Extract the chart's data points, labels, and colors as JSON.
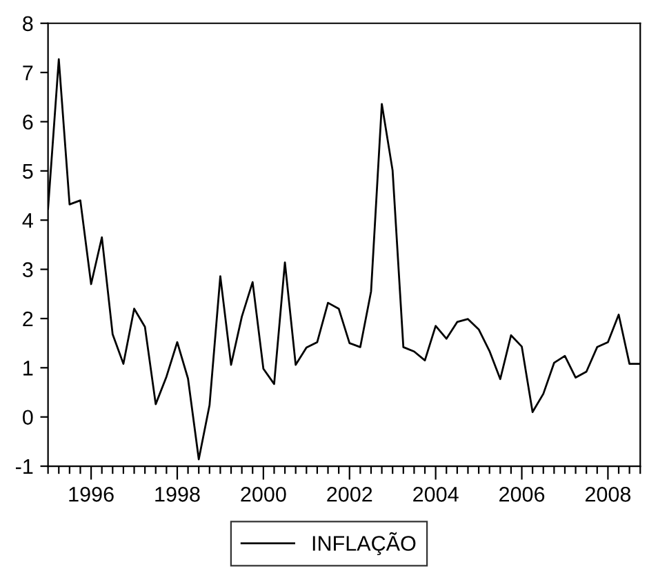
{
  "chart_data": {
    "type": "line",
    "legend": "bottom",
    "ylim": [
      -1,
      8
    ],
    "yticks": [
      -1,
      0,
      1,
      2,
      3,
      4,
      5,
      6,
      7,
      8
    ],
    "xlim": [
      1995,
      2008.75
    ],
    "xticks": [
      {
        "value": 1995,
        "label": null
      },
      {
        "value": 1995.25,
        "label": null
      },
      {
        "value": 1995.5,
        "label": null
      },
      {
        "value": 1995.75,
        "label": null
      },
      1996,
      {
        "value": 1996.25,
        "label": null
      },
      {
        "value": 1996.5,
        "label": null
      },
      {
        "value": 1996.75,
        "label": null
      },
      {
        "value": 1997,
        "label": null
      },
      {
        "value": 1997.25,
        "label": null
      },
      {
        "value": 1997.5,
        "label": null
      },
      {
        "value": 1997.75,
        "label": null
      },
      1998,
      {
        "value": 1998.25,
        "label": null
      },
      {
        "value": 1998.5,
        "label": null
      },
      {
        "value": 1998.75,
        "label": null
      },
      {
        "value": 1999,
        "label": null
      },
      {
        "value": 1999.25,
        "label": null
      },
      {
        "value": 1999.5,
        "label": null
      },
      {
        "value": 1999.75,
        "label": null
      },
      2000,
      {
        "value": 2000.25,
        "label": null
      },
      {
        "value": 2000.5,
        "label": null
      },
      {
        "value": 2000.75,
        "label": null
      },
      {
        "value": 2001,
        "label": null
      },
      {
        "value": 2001.25,
        "label": null
      },
      {
        "value": 2001.5,
        "label": null
      },
      {
        "value": 2001.75,
        "label": null
      },
      2002,
      {
        "value": 2002.25,
        "label": null
      },
      {
        "value": 2002.5,
        "label": null
      },
      {
        "value": 2002.75,
        "label": null
      },
      {
        "value": 2003,
        "label": null
      },
      {
        "value": 2003.25,
        "label": null
      },
      {
        "value": 2003.5,
        "label": null
      },
      {
        "value": 2003.75,
        "label": null
      },
      2004,
      {
        "value": 2004.25,
        "label": null
      },
      {
        "value": 2004.5,
        "label": null
      },
      {
        "value": 2004.75,
        "label": null
      },
      {
        "value": 2005,
        "label": null
      },
      {
        "value": 2005.25,
        "label": null
      },
      {
        "value": 2005.5,
        "label": null
      },
      {
        "value": 2005.75,
        "label": null
      },
      2006,
      {
        "value": 2006.25,
        "label": null
      },
      {
        "value": 2006.5,
        "label": null
      },
      {
        "value": 2006.75,
        "label": null
      },
      {
        "value": 2007,
        "label": null
      },
      {
        "value": 2007.25,
        "label": null
      },
      {
        "value": 2007.5,
        "label": null
      },
      {
        "value": 2007.75,
        "label": null
      },
      2008,
      {
        "value": 2008.25,
        "label": null
      },
      {
        "value": 2008.5,
        "label": null
      },
      {
        "value": 2008.75,
        "label": null
      }
    ],
    "x": [
      1995,
      1995.25,
      1995.5,
      1995.75,
      1996,
      1996.25,
      1996.5,
      1996.75,
      1997,
      1997.25,
      1997.5,
      1997.75,
      1998,
      1998.25,
      1998.5,
      1998.75,
      1999,
      1999.25,
      1999.5,
      1999.75,
      2000,
      2000.25,
      2000.5,
      2000.75,
      2001,
      2001.25,
      2001.5,
      2001.75,
      2002,
      2002.25,
      2002.5,
      2002.75,
      2003,
      2003.25,
      2003.5,
      2003.75,
      2004,
      2004.25,
      2004.5,
      2004.75,
      2005,
      2005.25,
      2005.5,
      2005.75,
      2006,
      2006.25,
      2006.5,
      2006.75,
      2007,
      2007.25,
      2007.5,
      2007.75,
      2008,
      2008.25,
      2008.5,
      2008.75
    ],
    "series": [
      {
        "name": "INFLAÇÃO",
        "color": "#000000",
        "values": [
          4.23,
          7.27,
          4.32,
          4.4,
          2.7,
          3.65,
          1.68,
          1.08,
          2.2,
          1.83,
          0.26,
          0.82,
          1.52,
          0.78,
          -0.86,
          0.24,
          2.86,
          1.06,
          2.04,
          2.74,
          0.98,
          0.67,
          3.14,
          1.06,
          1.41,
          1.52,
          2.32,
          2.2,
          1.5,
          1.42,
          2.55,
          6.36,
          5.01,
          1.42,
          1.33,
          1.15,
          1.85,
          1.59,
          1.93,
          1.99,
          1.78,
          1.34,
          0.77,
          1.66,
          1.43,
          0.1,
          0.47,
          1.1,
          1.24,
          0.8,
          0.92,
          1.42,
          1.52,
          2.08,
          1.08,
          1.08
        ]
      }
    ]
  }
}
